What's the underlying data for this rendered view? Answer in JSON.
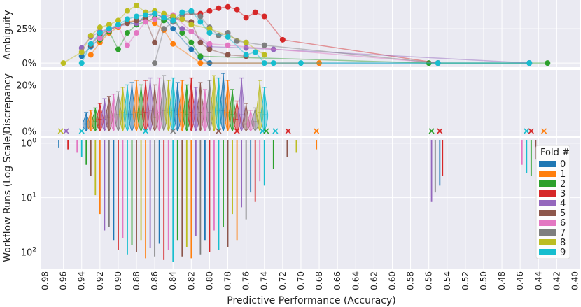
{
  "chart_data": {
    "type": "scatter",
    "title": "",
    "xlabel": "Predictive Performance (Accuracy)",
    "xlim": [
      0.985,
      0.395
    ],
    "xticks": [
      0.98,
      0.96,
      0.94,
      0.92,
      0.9,
      0.88,
      0.86,
      0.84,
      0.82,
      0.8,
      0.78,
      0.76,
      0.74,
      0.72,
      0.7,
      0.68,
      0.66,
      0.64,
      0.62,
      0.6,
      0.58,
      0.56,
      0.54,
      0.52,
      0.5,
      0.48,
      0.46,
      0.44,
      0.42,
      0.4
    ],
    "xtick_labels": [
      "0.98",
      "0.96",
      "0.94",
      "0.92",
      "0.90",
      "0.88",
      "0.86",
      "0.84",
      "0.82",
      "0.80",
      "0.78",
      "0.76",
      "0.74",
      "0.72",
      "0.70",
      "0.68",
      "0.66",
      "0.64",
      "0.62",
      "0.60",
      "0.58",
      "0.56",
      "0.54",
      "0.52",
      "0.50",
      "0.48",
      "0.46",
      "0.44",
      "0.42",
      "0.40"
    ],
    "legend": {
      "title": "Fold #",
      "position": "right",
      "entries": [
        "0",
        "1",
        "2",
        "3",
        "4",
        "5",
        "6",
        "7",
        "8",
        "9"
      ]
    },
    "colors": [
      "#1f77b4",
      "#ff7f0e",
      "#2ca02c",
      "#d62728",
      "#9467bd",
      "#8c564b",
      "#e377c2",
      "#7f7f7f",
      "#bcbd22",
      "#17becf"
    ],
    "panels": {
      "ambiguity": {
        "ylabel": "Ambiguity",
        "ylim": [
          -0.03,
          0.46
        ],
        "yticks": [
          0,
          0.25
        ],
        "ytick_labels": [
          "0%",
          "25%"
        ],
        "series": [
          {
            "fold": 0,
            "x": [
              0.94,
              0.93,
              0.92,
              0.91,
              0.9,
              0.89,
              0.88,
              0.87,
              0.86,
              0.85,
              0.84,
              0.82,
              0.81,
              0.8,
              0.55,
              0.45
            ],
            "y": [
              0.05,
              0.12,
              0.18,
              0.24,
              0.27,
              0.3,
              0.28,
              0.35,
              0.36,
              0.33,
              0.25,
              0.1,
              0.04,
              0.0,
              0.0,
              0.0
            ]
          },
          {
            "fold": 1,
            "x": [
              0.93,
              0.92,
              0.91,
              0.9,
              0.89,
              0.88,
              0.87,
              0.86,
              0.85,
              0.84,
              0.81,
              0.68
            ],
            "y": [
              0.06,
              0.15,
              0.22,
              0.26,
              0.3,
              0.31,
              0.32,
              0.29,
              0.24,
              0.14,
              0.0,
              0.0
            ]
          },
          {
            "fold": 2,
            "x": [
              0.92,
              0.91,
              0.9,
              0.89,
              0.88,
              0.87,
              0.86,
              0.85,
              0.84,
              0.83,
              0.82,
              0.81,
              0.56,
              0.43
            ],
            "y": [
              0.17,
              0.23,
              0.1,
              0.22,
              0.28,
              0.3,
              0.33,
              0.31,
              0.34,
              0.22,
              0.15,
              0.05,
              0.0,
              0.0
            ]
          },
          {
            "fold": 3,
            "x": [
              0.83,
              0.81,
              0.8,
              0.79,
              0.78,
              0.77,
              0.76,
              0.75,
              0.74,
              0.72,
              0.55
            ],
            "y": [
              0.35,
              0.36,
              0.38,
              0.4,
              0.41,
              0.39,
              0.33,
              0.37,
              0.34,
              0.17,
              0.0
            ]
          },
          {
            "fold": 4,
            "x": [
              0.94,
              0.93,
              0.92,
              0.9,
              0.88,
              0.86,
              0.84,
              0.83,
              0.82,
              0.8,
              0.76,
              0.73,
              0.45
            ],
            "y": [
              0.11,
              0.19,
              0.23,
              0.27,
              0.29,
              0.36,
              0.3,
              0.25,
              0.23,
              0.12,
              0.11,
              0.1,
              0.0
            ]
          },
          {
            "fold": 5,
            "x": [
              0.93,
              0.92,
              0.91,
              0.9,
              0.89,
              0.88,
              0.87,
              0.86,
              0.85,
              0.84,
              0.82,
              0.81,
              0.8,
              0.78,
              0.76
            ],
            "y": [
              0.13,
              0.21,
              0.24,
              0.27,
              0.29,
              0.31,
              0.32,
              0.15,
              0.34,
              0.33,
              0.3,
              0.15,
              0.1,
              0.06,
              0.05
            ]
          },
          {
            "fold": 6,
            "x": [
              0.92,
              0.91,
              0.9,
              0.89,
              0.88,
              0.87,
              0.86,
              0.85,
              0.84,
              0.82,
              0.8,
              0.78,
              0.55
            ],
            "y": [
              0.18,
              0.24,
              0.27,
              0.13,
              0.22,
              0.3,
              0.32,
              0.34,
              0.35,
              0.23,
              0.14,
              0.13,
              0.0
            ]
          },
          {
            "fold": 7,
            "x": [
              0.86,
              0.85,
              0.84,
              0.83,
              0.82,
              0.81,
              0.8,
              0.79,
              0.78,
              0.77,
              0.76,
              0.74,
              0.55
            ],
            "y": [
              0.0,
              0.25,
              0.3,
              0.35,
              0.37,
              0.34,
              0.26,
              0.2,
              0.22,
              0.16,
              0.15,
              0.13,
              0.0
            ]
          },
          {
            "fold": 8,
            "x": [
              0.96,
              0.94,
              0.93,
              0.92,
              0.91,
              0.9,
              0.89,
              0.88,
              0.87,
              0.86,
              0.85,
              0.84,
              0.83,
              0.82,
              0.8,
              0.76,
              0.74
            ],
            "y": [
              0.0,
              0.08,
              0.2,
              0.26,
              0.28,
              0.31,
              0.38,
              0.42,
              0.37,
              0.38,
              0.36,
              0.34,
              0.32,
              0.28,
              0.25,
              0.15,
              0.06
            ]
          },
          {
            "fold": 9,
            "x": [
              0.94,
              0.93,
              0.92,
              0.91,
              0.9,
              0.89,
              0.88,
              0.87,
              0.86,
              0.85,
              0.84,
              0.83,
              0.82,
              0.81,
              0.8,
              0.78,
              0.76,
              0.75,
              0.74,
              0.73,
              0.7,
              0.55,
              0.45
            ],
            "y": [
              0.0,
              0.14,
              0.22,
              0.25,
              0.28,
              0.32,
              0.34,
              0.35,
              0.36,
              0.33,
              0.31,
              0.37,
              0.38,
              0.3,
              0.22,
              0.19,
              0.06,
              0.08,
              0.0,
              0.0,
              0.0,
              0.0,
              0.0
            ]
          }
        ]
      },
      "discrepancy": {
        "ylabel": "Discrepancy",
        "ylim": [
          -0.02,
          0.265
        ],
        "yticks": [
          0,
          0.2
        ],
        "ytick_labels": [
          "0%",
          "20%"
        ],
        "violin_x": [
          0.935,
          0.93,
          0.925,
          0.92,
          0.915,
          0.91,
          0.905,
          0.9,
          0.895,
          0.89,
          0.885,
          0.88,
          0.875,
          0.87,
          0.865,
          0.86,
          0.855,
          0.85,
          0.845,
          0.84,
          0.835,
          0.83,
          0.825,
          0.82,
          0.815,
          0.81,
          0.805,
          0.8,
          0.795,
          0.79,
          0.785,
          0.78,
          0.775,
          0.77,
          0.765,
          0.76,
          0.755,
          0.75,
          0.745,
          0.74
        ],
        "violin_max": [
          0.08,
          0.09,
          0.1,
          0.12,
          0.14,
          0.15,
          0.16,
          0.17,
          0.19,
          0.2,
          0.21,
          0.22,
          0.2,
          0.22,
          0.23,
          0.2,
          0.23,
          0.24,
          0.22,
          0.23,
          0.21,
          0.22,
          0.2,
          0.23,
          0.19,
          0.21,
          0.18,
          0.22,
          0.24,
          0.23,
          0.25,
          0.22,
          0.18,
          0.13,
          0.23,
          0.12,
          0.09,
          0.1,
          0.22,
          0.19
        ],
        "violin_median": [
          0.03,
          0.03,
          0.04,
          0.05,
          0.05,
          0.06,
          0.06,
          0.07,
          0.08,
          0.07,
          0.07,
          0.08,
          0.07,
          0.08,
          0.09,
          0.06,
          0.08,
          0.09,
          0.08,
          0.09,
          0.07,
          0.08,
          0.07,
          0.08,
          0.07,
          0.08,
          0.06,
          0.08,
          0.1,
          0.09,
          0.09,
          0.08,
          0.07,
          0.05,
          0.07,
          0.03,
          0.03,
          0.04,
          0.08,
          0.07
        ],
        "outlier_x": [
          0.963,
          0.957,
          0.94,
          0.87,
          0.84,
          0.79,
          0.77,
          0.742,
          0.738,
          0.728,
          0.714,
          0.683,
          0.557,
          0.548,
          0.453,
          0.448,
          0.434
        ],
        "outlier_y": [
          0,
          0,
          0,
          0,
          0,
          0,
          0,
          0,
          0,
          0,
          0,
          0,
          0,
          0,
          0,
          0,
          0
        ],
        "outlier_fold": [
          8,
          4,
          9,
          9,
          7,
          5,
          3,
          9,
          2,
          9,
          3,
          1,
          2,
          3,
          9,
          3,
          1
        ]
      },
      "workflow_runs": {
        "ylabel": "Workflow Runs (Log Scale)",
        "yscale": "log",
        "ylim": [
          0.82,
          200
        ],
        "yticks": [
          1,
          10,
          100
        ],
        "ytick_labels": [
          "10^0",
          "10^1",
          "10^2"
        ],
        "bar_x": [
          0.965,
          0.955,
          0.945,
          0.94,
          0.935,
          0.93,
          0.925,
          0.92,
          0.915,
          0.91,
          0.905,
          0.9,
          0.895,
          0.89,
          0.885,
          0.88,
          0.875,
          0.87,
          0.865,
          0.86,
          0.855,
          0.85,
          0.845,
          0.84,
          0.835,
          0.83,
          0.825,
          0.82,
          0.815,
          0.81,
          0.805,
          0.8,
          0.795,
          0.79,
          0.785,
          0.78,
          0.775,
          0.77,
          0.765,
          0.76,
          0.755,
          0.75,
          0.745,
          0.74,
          0.73,
          0.715,
          0.705,
          0.683,
          0.557,
          0.553,
          0.548,
          0.545,
          0.458,
          0.453,
          0.448,
          0.443
        ],
        "bar_runs": [
          1.2,
          1.3,
          1.5,
          1.8,
          2.5,
          4,
          9,
          20,
          40,
          35,
          60,
          90,
          55,
          110,
          75,
          100,
          60,
          130,
          85,
          120,
          70,
          140,
          90,
          150,
          60,
          120,
          80,
          130,
          50,
          110,
          60,
          100,
          40,
          90,
          35,
          80,
          20,
          60,
          15,
          25,
          8,
          12,
          5,
          6,
          3,
          1.8,
          1.5,
          1.3,
          12,
          8,
          6,
          4,
          2.5,
          3.5,
          4,
          2
        ]
      }
    }
  }
}
